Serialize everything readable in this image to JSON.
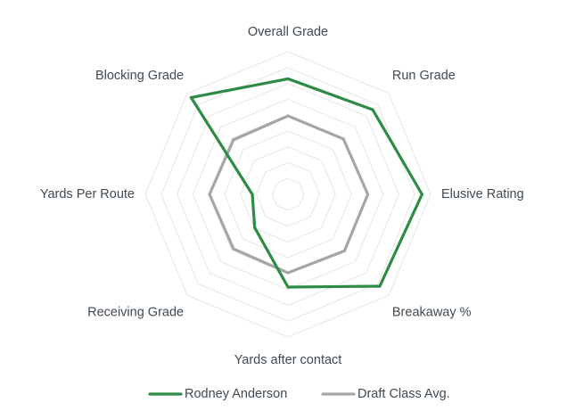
{
  "chart_data": {
    "type": "radar",
    "title": "",
    "categories": [
      "Overall Grade",
      "Run Grade",
      "Elusive Rating",
      "Breakaway %",
      "Yards after contact",
      "Receiving Grade",
      "Yards Per Route",
      "Blocking Grade"
    ],
    "rlim": [
      0,
      100
    ],
    "grid": true,
    "grid_rings": 9,
    "legend_placement": "bottom",
    "series": [
      {
        "name": "Rodney Anderson",
        "color": "#2e8b45",
        "values": [
          81,
          84,
          94,
          91,
          65,
          33,
          25,
          96
        ]
      },
      {
        "name": "Draft Class Avg.",
        "color": "#a6a6a6",
        "values": [
          55,
          55,
          56,
          56,
          55,
          54,
          55,
          54
        ]
      }
    ]
  },
  "colors": {
    "grid": "#e6e6e6",
    "label_text": "#404a52"
  }
}
